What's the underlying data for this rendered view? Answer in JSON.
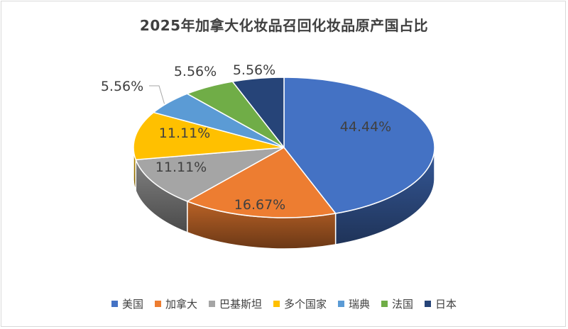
{
  "chart_data": {
    "type": "pie",
    "title": "2025年加拿大化妆品召回化妆品原产国占比",
    "legend_position": "bottom",
    "series": [
      {
        "name": "美国",
        "value": 44.44,
        "label": "44.44%",
        "color": "#4472C4"
      },
      {
        "name": "加拿大",
        "value": 16.67,
        "label": "16.67%",
        "color": "#ED7D31"
      },
      {
        "name": "巴基斯坦",
        "value": 11.11,
        "label": "11.11%",
        "color": "#A5A5A5"
      },
      {
        "name": "多个国家",
        "value": 11.11,
        "label": "11.11%",
        "color": "#FFC000"
      },
      {
        "name": "瑞典",
        "value": 5.56,
        "label": "5.56%",
        "color": "#5B9BD5"
      },
      {
        "name": "法国",
        "value": 5.56,
        "label": "5.56%",
        "color": "#70AD47"
      },
      {
        "name": "日本",
        "value": 5.56,
        "label": "5.56%",
        "color": "#264478"
      }
    ]
  }
}
